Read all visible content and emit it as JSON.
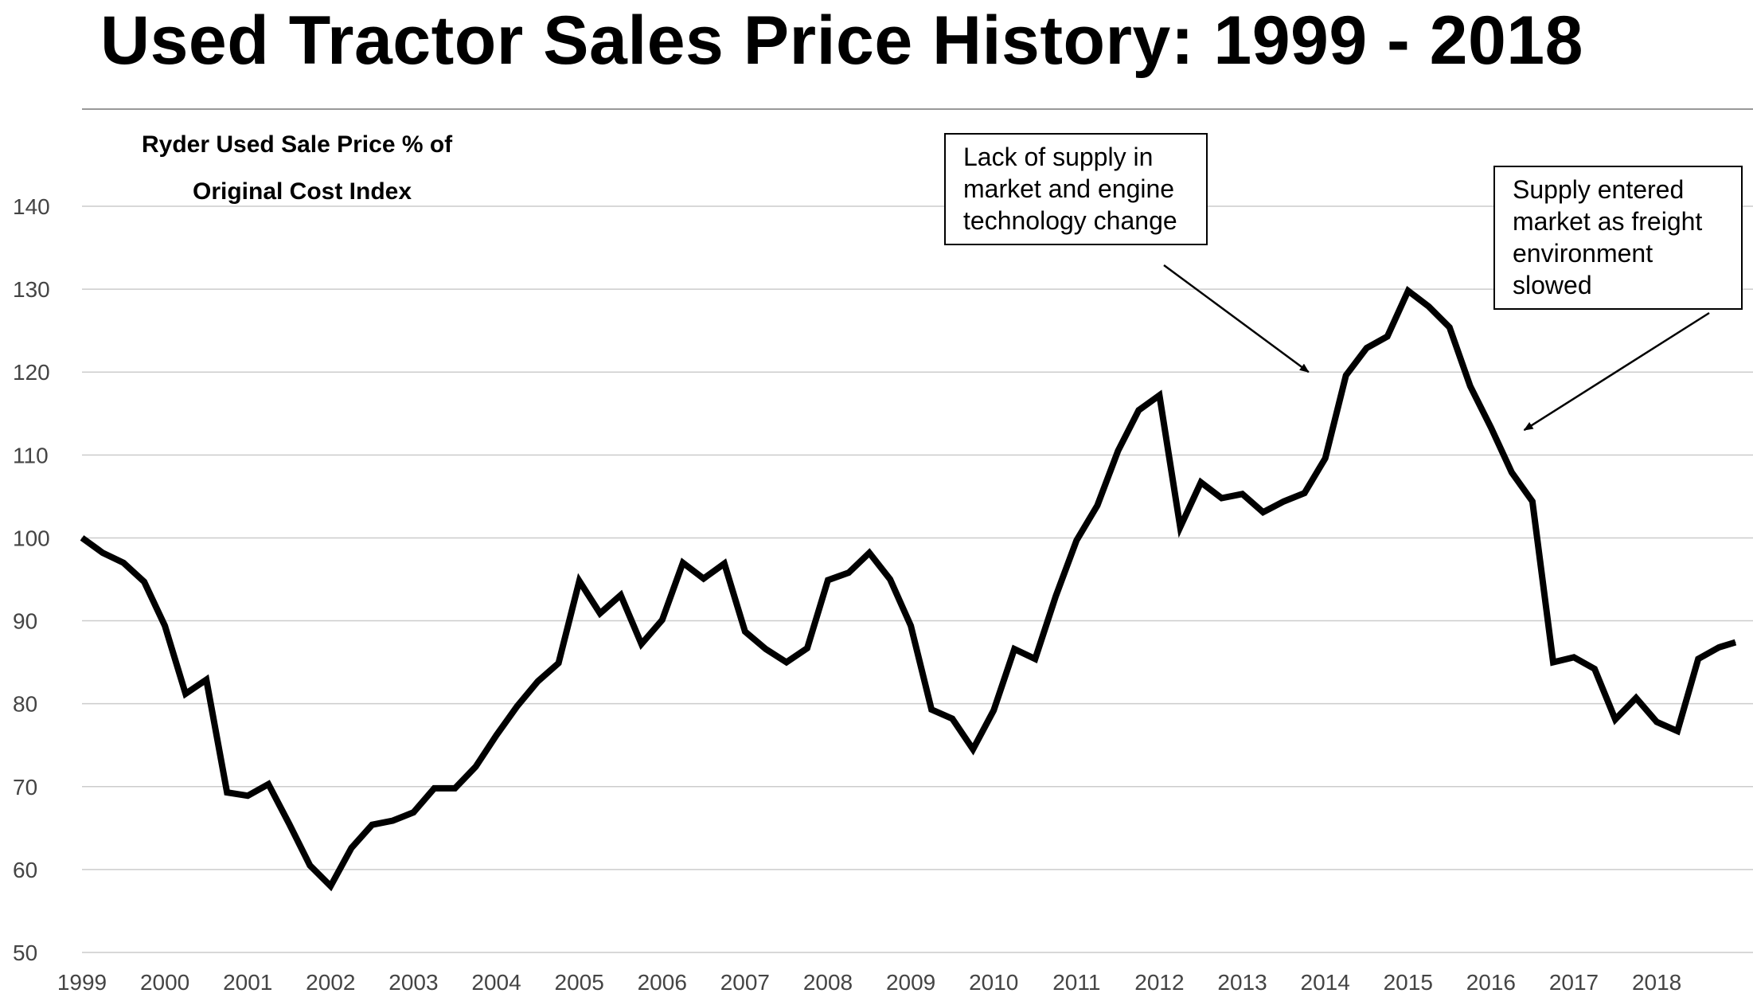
{
  "title": "Used Tractor Sales Price History: 1999 - 2018",
  "chart_data": {
    "type": "line",
    "title": "Used Tractor Sales Price History: 1999 - 2018",
    "subtitle_lines": [
      "Ryder Used Sale Price % of",
      "Original Cost Index"
    ],
    "xlabel": "",
    "ylabel": "",
    "x_ticks": [
      "1999",
      "2000",
      "2001",
      "2002",
      "2003",
      "2004",
      "2005",
      "2006",
      "2007",
      "2008",
      "2009",
      "2010",
      "2011",
      "2012",
      "2013",
      "2014",
      "2015",
      "2016",
      "2017",
      "2018"
    ],
    "y_ticks": [
      50,
      60,
      70,
      80,
      90,
      100,
      110,
      120,
      130,
      140
    ],
    "ylim": [
      50,
      140
    ],
    "xlim": [
      1999,
      2018.95
    ],
    "grid": true,
    "legend": "none",
    "line_color": "#000000",
    "grid_color": "#cccccc",
    "series": [
      {
        "x": [
          1999.0,
          1999.25,
          1999.5,
          1999.75,
          2000.0,
          2000.25,
          2000.5,
          2000.75,
          2001.0,
          2001.25,
          2001.5,
          2001.75,
          2002.0,
          2002.25,
          2002.5,
          2002.75,
          2003.0,
          2003.25,
          2003.5,
          2003.75,
          2004.0,
          2004.25,
          2004.5,
          2004.75,
          2005.0,
          2005.25,
          2005.5,
          2005.75,
          2006.0,
          2006.25,
          2006.5,
          2006.75,
          2007.0,
          2007.25,
          2007.5,
          2007.75,
          2008.0,
          2008.25,
          2008.5,
          2008.75,
          2009.0,
          2009.25,
          2009.5,
          2009.75,
          2010.0,
          2010.25,
          2010.5,
          2010.75,
          2011.0,
          2011.25,
          2011.5,
          2011.75,
          2012.0,
          2012.25,
          2012.5,
          2012.75,
          2013.0,
          2013.25,
          2013.5,
          2013.75,
          2014.0,
          2014.25,
          2014.5,
          2014.75,
          2015.0,
          2015.25,
          2015.5,
          2015.75,
          2016.0,
          2016.25,
          2016.5,
          2016.75,
          2017.0,
          2017.25,
          2017.5,
          2017.75,
          2018.0,
          2018.25,
          2018.5,
          2018.75,
          2018.95
        ],
        "values": [
          100,
          98.2,
          97,
          94.7,
          89.4,
          81.2,
          82.9,
          69.3,
          68.9,
          70.3,
          65.5,
          60.5,
          58.0,
          62.6,
          65.4,
          65.9,
          66.9,
          69.8,
          69.8,
          72.4,
          76.2,
          79.7,
          82.7,
          84.9,
          94.8,
          90.9,
          93.1,
          87.2,
          90.1,
          97.0,
          95.1,
          96.9,
          88.7,
          86.6,
          85.0,
          86.7,
          94.9,
          95.8,
          98.2,
          95.0,
          89.4,
          79.3,
          78.2,
          74.5,
          79.2,
          86.6,
          85.4,
          93.0,
          99.7,
          103.9,
          110.5,
          115.4,
          117.2,
          101.3,
          106.7,
          104.8,
          105.3,
          103.1,
          104.4,
          105.4,
          109.6,
          119.6,
          122.9,
          124.3,
          129.8,
          127.9,
          125.4,
          118.3,
          113.3,
          107.9,
          104.4,
          85.0,
          85.6,
          84.2,
          78.1,
          80.7,
          77.8,
          76.7,
          85.4,
          86.8,
          87.4
        ]
      }
    ],
    "annotations": [
      {
        "text_lines": [
          "Lack of supply in",
          "market and engine",
          "technology change"
        ],
        "arrow_to": [
          2013.8,
          120
        ]
      },
      {
        "text_lines": [
          "Supply entered",
          "market as freight",
          "environment",
          "slowed"
        ],
        "arrow_to": [
          2016.4,
          113
        ]
      }
    ]
  }
}
